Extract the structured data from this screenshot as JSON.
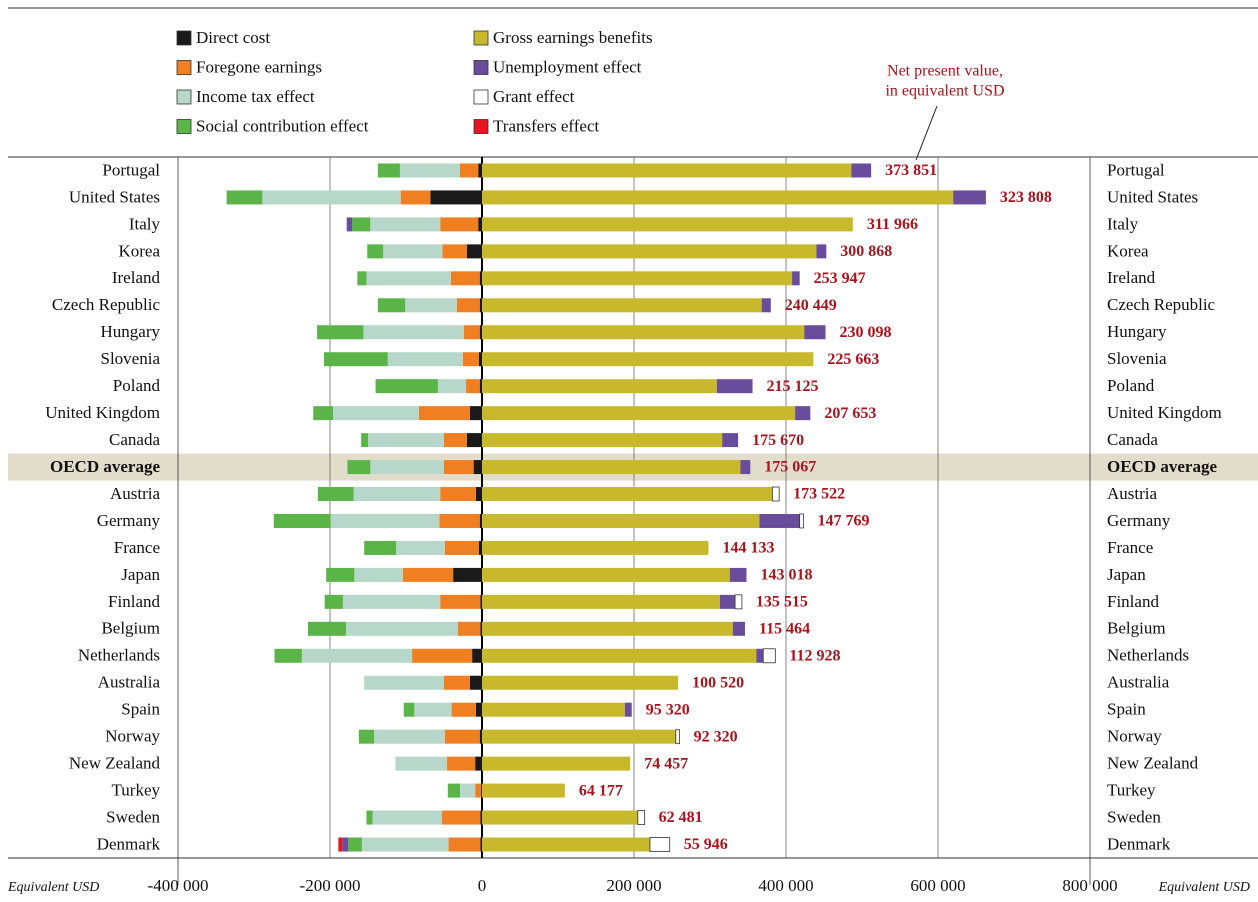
{
  "chart_data": {
    "type": "diverging_stacked_bar",
    "annotation": [
      "Net present value,",
      "in equivalent USD"
    ],
    "x_axis_label": "Equivalent USD",
    "highlight": "OECD average",
    "categories": [
      "Portugal",
      "United States",
      "Italy",
      "Korea",
      "Ireland",
      "Czech Republic",
      "Hungary",
      "Slovenia",
      "Poland",
      "United Kingdom",
      "Canada",
      "OECD average",
      "Austria",
      "Germany",
      "France",
      "Japan",
      "Finland",
      "Belgium",
      "Netherlands",
      "Australia",
      "Spain",
      "Norway",
      "New Zealand",
      "Turkey",
      "Sweden",
      "Denmark"
    ],
    "series": [
      {
        "name": "Direct cost",
        "color": "#1a1a1a",
        "values": [
          -5000,
          -68000,
          -5000,
          -20000,
          -3000,
          -3000,
          -3000,
          -4000,
          -3000,
          -16000,
          -20000,
          -11000,
          -8000,
          -3000,
          -4000,
          -38000,
          -2000,
          -2000,
          -13000,
          -16000,
          -8000,
          -3000,
          -9000,
          -1000,
          -2000,
          -2000
        ]
      },
      {
        "name": "Foregone earnings",
        "color": "#f07f22",
        "values": [
          -24000,
          -39000,
          -50000,
          -32000,
          -38000,
          -30000,
          -21000,
          -21000,
          -18000,
          -67000,
          -30000,
          -39000,
          -47000,
          -53000,
          -45000,
          -66000,
          -53000,
          -30000,
          -79000,
          -34000,
          -32000,
          -46000,
          -37000,
          -8000,
          -51000,
          -42000
        ]
      },
      {
        "name": "Income tax effect",
        "color": "#b6d7c9",
        "values": [
          -79000,
          -182000,
          -92000,
          -78000,
          -111000,
          -68000,
          -132000,
          -99000,
          -37000,
          -113000,
          -100000,
          -97000,
          -114000,
          -143000,
          -64000,
          -64000,
          -128000,
          -147000,
          -145000,
          -105000,
          -49000,
          -93000,
          -68000,
          -20000,
          -91000,
          -114000
        ]
      },
      {
        "name": "Social contribution effect",
        "color": "#5ab448",
        "values": [
          -29000,
          -47000,
          -24000,
          -21000,
          -12000,
          -36000,
          -61000,
          -84000,
          -82000,
          -26000,
          -9000,
          -30000,
          -47000,
          -75000,
          -42000,
          -37000,
          -24000,
          -50000,
          -36000,
          0,
          -14000,
          -20000,
          0,
          -16000,
          -8000,
          -18000
        ]
      },
      {
        "name": "Gross earnings benefits",
        "color": "#c8b92c",
        "values": [
          486000,
          620000,
          488000,
          440000,
          408000,
          368000,
          424000,
          436000,
          309000,
          412000,
          316000,
          340000,
          382000,
          365000,
          298000,
          326000,
          313000,
          330000,
          361000,
          258000,
          188000,
          255000,
          195000,
          109000,
          205000,
          221000
        ]
      },
      {
        "name": "Unemployment effect",
        "color": "#6a4c9c",
        "values": [
          26000,
          43000,
          -7000,
          13000,
          10000,
          12000,
          28000,
          0,
          47000,
          20000,
          21000,
          13000,
          0,
          53000,
          0,
          22000,
          20000,
          16000,
          9000,
          0,
          9000,
          0,
          0,
          0,
          0,
          -8000
        ]
      },
      {
        "name": "Grant effect",
        "color": "#ffffff",
        "values": [
          0,
          0,
          0,
          0,
          0,
          0,
          0,
          0,
          0,
          0,
          0,
          0,
          9000,
          5000,
          0,
          0,
          9000,
          0,
          16000,
          0,
          0,
          5000,
          0,
          0,
          9000,
          26000
        ]
      },
      {
        "name": "Transfers effect",
        "color": "#e3171f",
        "values": [
          0,
          0,
          0,
          0,
          0,
          0,
          0,
          0,
          0,
          0,
          0,
          0,
          0,
          0,
          0,
          0,
          0,
          0,
          0,
          0,
          0,
          0,
          0,
          0,
          0,
          -5000
        ]
      }
    ],
    "net_present_value": {
      "values": [
        373851,
        323808,
        311966,
        300868,
        253947,
        240449,
        230098,
        225663,
        215125,
        207653,
        175670,
        175067,
        173522,
        147769,
        144133,
        143018,
        135515,
        115464,
        112928,
        100520,
        95320,
        92320,
        74457,
        64177,
        62481,
        55946
      ],
      "value_labels": [
        "373 851",
        "323 808",
        "311 966",
        "300 868",
        "253 947",
        "240 449",
        "230 098",
        "225 663",
        "215 125",
        "207 653",
        "175 670",
        "175 067",
        "173 522",
        "147 769",
        "144 133",
        "143 018",
        "135 515",
        "115 464",
        "112 928",
        "100 520",
        "95 320",
        "92 320",
        "74 457",
        "64 177",
        "62 481",
        "55 946"
      ]
    },
    "xlim": [
      -400000,
      800000
    ],
    "xticks": [
      {
        "value": -400000,
        "label": "-400 000"
      },
      {
        "value": -200000,
        "label": "-200 000"
      },
      0,
      {
        "value": 200000,
        "label": "200 000"
      },
      {
        "value": 400000,
        "label": "400 000"
      },
      {
        "value": 600000,
        "label": "600 000"
      },
      {
        "value": 800000,
        "label": "800 000"
      }
    ],
    "grid": true
  }
}
